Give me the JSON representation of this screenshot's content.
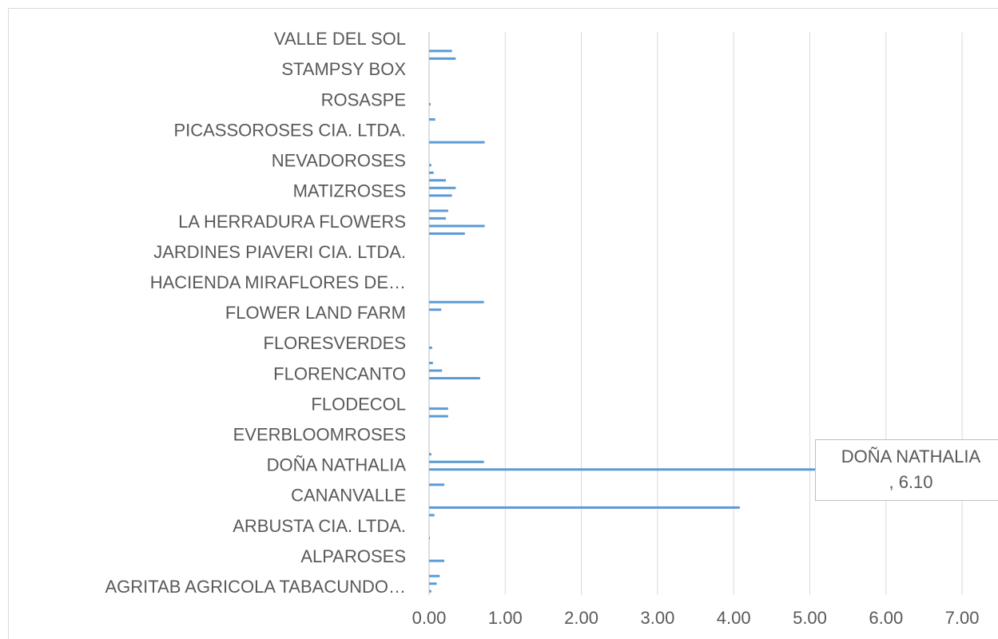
{
  "chart_data": {
    "type": "barh",
    "categories": [
      "AGRITAB AGRICOLA TABACUNDO…",
      null,
      null,
      null,
      "ALPAROSES",
      null,
      null,
      null,
      "ARBUSTA CIA. LTDA.",
      null,
      null,
      null,
      "CANANVALLE",
      null,
      null,
      null,
      "DOÑA NATHALIA",
      null,
      null,
      null,
      "EVERBLOOMROSES",
      null,
      null,
      null,
      "FLODECOL",
      null,
      null,
      null,
      "FLORENCANTO",
      null,
      null,
      null,
      "FLORESVERDES",
      null,
      null,
      null,
      "FLOWER LAND FARM",
      null,
      null,
      null,
      "HACIENDA MIRAFLORES DE…",
      null,
      null,
      null,
      "JARDINES PIAVERI CIA. LTDA.",
      null,
      null,
      null,
      "LA HERRADURA FLOWERS",
      null,
      null,
      null,
      "MATIZROSES",
      null,
      null,
      null,
      "NEVADOROSES",
      null,
      null,
      null,
      "PICASSOROSES CIA. LTDA.",
      null,
      null,
      null,
      "ROSASPE",
      null,
      null,
      null,
      "STAMPSY BOX",
      null,
      null,
      null,
      "VALLE DEL SOL",
      null
    ],
    "values": [
      0.03,
      0.1,
      0.14,
      0,
      0.2,
      0,
      0,
      0.01,
      0,
      0,
      0.07,
      4.08,
      0,
      0,
      0.2,
      0,
      6.1,
      0.72,
      0.03,
      0,
      0,
      0,
      0,
      0.25,
      0.25,
      0,
      0,
      0,
      0.67,
      0.17,
      0.05,
      0,
      0.04,
      0,
      0,
      0,
      0,
      0.16,
      0.72,
      0,
      0,
      0,
      0,
      0,
      0,
      0,
      0,
      0.47,
      0.73,
      0.22,
      0.25,
      0,
      0.3,
      0.35,
      0.22,
      0.06,
      0.03,
      0,
      0,
      0.73,
      0,
      0,
      0.08,
      0,
      0.02,
      0,
      0,
      0,
      0,
      0,
      0.35,
      0.3,
      0,
      0
    ],
    "value_labels": [
      null,
      null,
      null,
      null,
      null,
      null,
      null,
      null,
      null,
      null,
      null,
      null,
      null,
      null,
      null,
      null,
      "DOÑA NATHALIA , 6.10",
      null,
      null,
      null,
      null,
      null,
      null,
      null,
      null,
      null,
      null,
      null,
      null,
      null,
      null,
      null,
      null,
      null,
      null,
      null,
      null,
      null,
      null,
      null,
      null,
      null,
      null,
      null,
      null,
      null,
      null,
      null,
      null,
      null,
      null,
      null,
      null,
      null,
      null,
      null,
      null,
      null,
      null,
      null,
      null,
      null,
      null,
      null,
      null,
      null,
      null,
      null,
      null,
      null,
      null,
      null,
      null,
      null
    ],
    "color": "#5b9bd5",
    "xlim": [
      0,
      7.35
    ],
    "xticks": [
      {
        "value": 0,
        "label": "0.00"
      },
      {
        "value": 1,
        "label": "1.00"
      },
      {
        "value": 2,
        "label": "2.00"
      },
      {
        "value": 3,
        "label": "3.00"
      },
      {
        "value": 4,
        "label": "4.00"
      },
      {
        "value": 5,
        "label": "5.00"
      },
      {
        "value": 6,
        "label": "6.00"
      },
      {
        "value": 7,
        "label": "7.00"
      }
    ],
    "grid": true
  }
}
